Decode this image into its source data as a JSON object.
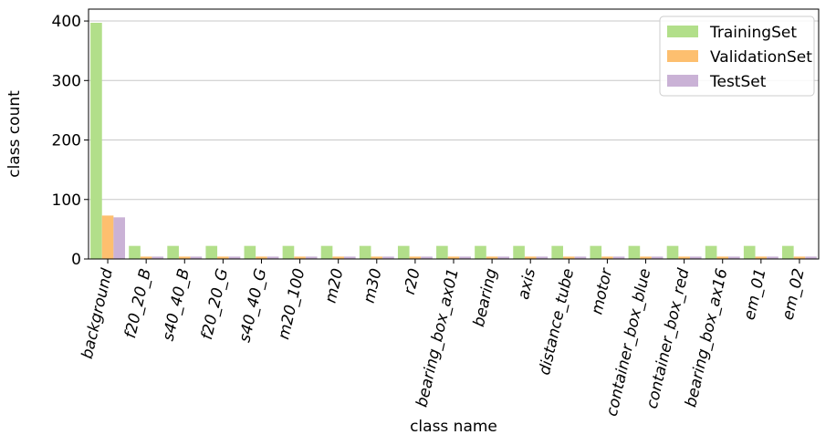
{
  "chart_data": {
    "type": "bar",
    "xlabel": "class name",
    "ylabel": "class count",
    "ylim": [
      0,
      420
    ],
    "yticks": [
      0,
      100,
      200,
      300,
      400
    ],
    "grid": "horizontal",
    "legend_position": "top-right",
    "categories": [
      "background",
      "f20_20_B",
      "s40_40_B",
      "f20_20_G",
      "s40_40_G",
      "m20_100",
      "m20",
      "m30",
      "r20",
      "bearing_box_ax01",
      "bearing",
      "axis",
      "distance_tube",
      "motor",
      "container_box_blue",
      "container_box_red",
      "bearing_box_ax16",
      "em_01",
      "em_02"
    ],
    "series": [
      {
        "name": "TrainingSet",
        "color": "#b2df8a",
        "values": [
          397,
          22,
          22,
          22,
          22,
          22,
          22,
          22,
          22,
          22,
          22,
          22,
          22,
          22,
          22,
          22,
          22,
          22,
          22
        ]
      },
      {
        "name": "ValidationSet",
        "color": "#fdbf6f",
        "values": [
          73,
          4,
          4,
          4,
          4,
          4,
          4,
          4,
          4,
          4,
          4,
          4,
          4,
          4,
          4,
          4,
          4,
          4,
          4
        ]
      },
      {
        "name": "TestSet",
        "color": "#cab2d6",
        "values": [
          70,
          4,
          4,
          4,
          4,
          4,
          4,
          4,
          4,
          4,
          4,
          4,
          4,
          4,
          4,
          4,
          4,
          4,
          4
        ]
      }
    ]
  }
}
